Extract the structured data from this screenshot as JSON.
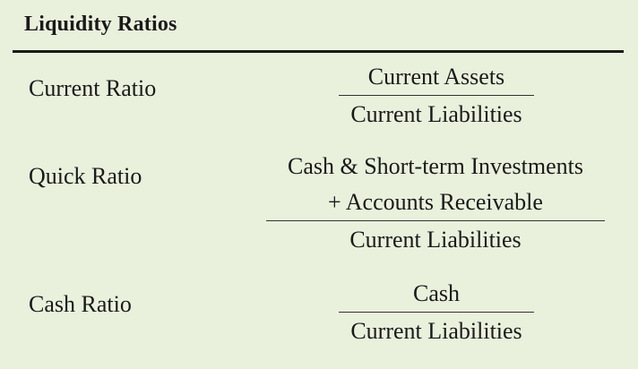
{
  "table": {
    "title": "Liquidity Ratios",
    "rows": [
      {
        "name": "Current Ratio",
        "numerator": [
          "Current Assets"
        ],
        "denominator": "Current Liabilities"
      },
      {
        "name": "Quick Ratio",
        "numerator": [
          "Cash & Short-term Investments",
          "+ Accounts Receivable"
        ],
        "denominator": "Current Liabilities"
      },
      {
        "name": "Cash Ratio",
        "numerator": [
          "Cash"
        ],
        "denominator": "Current Liabilities"
      }
    ]
  },
  "colors": {
    "background": "#e9f1dc",
    "text": "#1a1a1a",
    "rule": "#1a1a1a"
  }
}
